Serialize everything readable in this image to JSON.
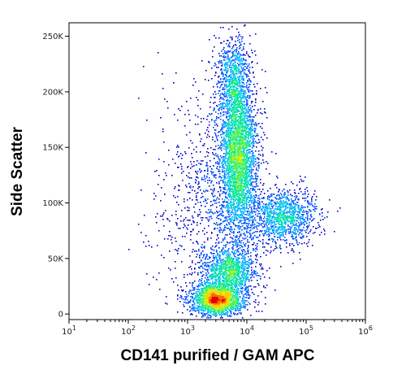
{
  "chart_data": {
    "type": "scatter",
    "plot_style": "density pseudocolor dot plot",
    "xlabel": "CD141 purified / GAM APC",
    "ylabel": "Side Scatter",
    "x_scale": "log",
    "x_range": [
      10,
      1000000
    ],
    "y_scale": "linear",
    "y_range": [
      -5000,
      262144
    ],
    "x_ticks": [
      {
        "value": 10,
        "base": "10",
        "exp": "1"
      },
      {
        "value": 100,
        "base": "10",
        "exp": "2"
      },
      {
        "value": 1000,
        "base": "10",
        "exp": "3"
      },
      {
        "value": 10000,
        "base": "10",
        "exp": "4"
      },
      {
        "value": 100000,
        "base": "10",
        "exp": "5"
      },
      {
        "value": 1000000,
        "base": "10",
        "exp": "6"
      }
    ],
    "y_ticks": [
      {
        "value": 0,
        "label": "0"
      },
      {
        "value": 50000,
        "label": "50K"
      },
      {
        "value": 100000,
        "label": "100K"
      },
      {
        "value": 150000,
        "label": "150K"
      },
      {
        "value": 200000,
        "label": "200K"
      },
      {
        "value": 250000,
        "label": "250K"
      }
    ],
    "grid": false,
    "legend": "none",
    "density_colors": [
      "#0000c8",
      "#0050ff",
      "#00b4ff",
      "#00e6a0",
      "#50f050",
      "#c8f000",
      "#ffc800",
      "#ff6400",
      "#dc0000"
    ],
    "populations": [
      {
        "x_center": 7000,
        "y_center": 145000,
        "x_spread_decades": 0.16,
        "y_spread": 38000,
        "weight": 0.36
      },
      {
        "x_center": 5500,
        "y_center": 215000,
        "x_spread_decades": 0.14,
        "y_spread": 18000,
        "weight": 0.07
      },
      {
        "x_center": 3000,
        "y_center": 14000,
        "x_spread_decades": 0.22,
        "y_spread": 7000,
        "weight": 0.2
      },
      {
        "x_center": 5000,
        "y_center": 38000,
        "x_spread_decades": 0.22,
        "y_spread": 10000,
        "weight": 0.12
      },
      {
        "x_center": 40000,
        "y_center": 88000,
        "x_spread_decades": 0.28,
        "y_spread": 13000,
        "weight": 0.13
      },
      {
        "x_center": 2500,
        "y_center": 90000,
        "x_spread_decades": 0.45,
        "y_spread": 55000,
        "weight": 0.12
      }
    ]
  }
}
